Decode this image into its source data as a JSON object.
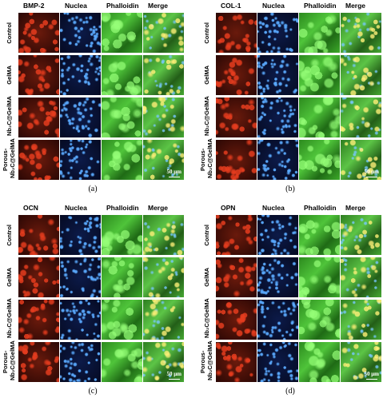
{
  "panels": [
    {
      "caption": "(a)",
      "columns": [
        "BMP-2",
        "Nuclea",
        "Phalloidin",
        "Merge"
      ],
      "rows": [
        "Control",
        "GelMA",
        "Nb₂C@GelMA",
        "Porous-Nb₂C@GelMA"
      ],
      "scale_bar": "50 μm"
    },
    {
      "caption": "(b)",
      "columns": [
        "COL-1",
        "Nuclea",
        "Phalloidin",
        "Merge"
      ],
      "rows": [
        "Control",
        "GelMA",
        "Nb₂C@GelMA",
        "Porous-Nb₂C@GelMA"
      ],
      "scale_bar": "50 μm"
    },
    {
      "caption": "(c)",
      "columns": [
        "OCN",
        "Nuclea",
        "Phalloidin",
        "Merge"
      ],
      "rows": [
        "Control",
        "GelMA",
        "Nb₂C@GelMA",
        "Porous-Nb₂C@GelMA"
      ],
      "scale_bar": "50 μm"
    },
    {
      "caption": "(d)",
      "columns": [
        "OPN",
        "Nuclea",
        "Phalloidin",
        "Merge"
      ],
      "rows": [
        "Control",
        "GelMA",
        "Nb₂C@GelMA",
        "Porous-Nb₂C@GelMA"
      ],
      "scale_bar": "50 μm"
    }
  ]
}
